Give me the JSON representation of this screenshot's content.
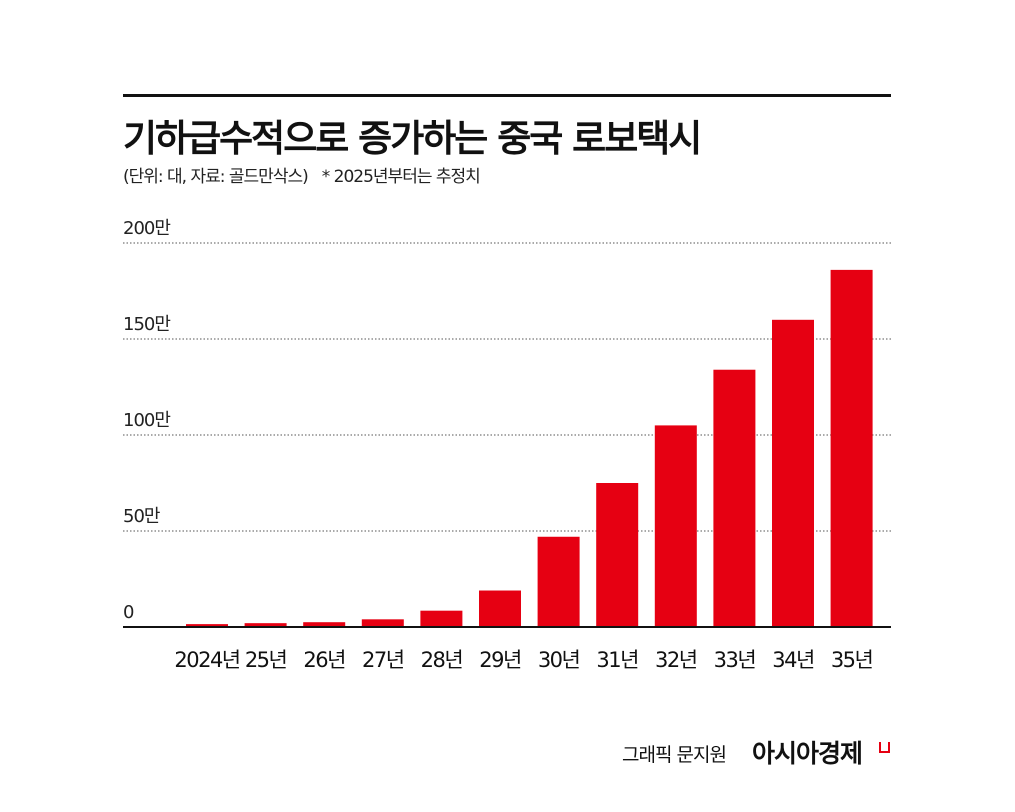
{
  "chart_data": {
    "type": "bar",
    "title": "기하급수적으로 증가하는 중국 로보택시",
    "subtitle": "(단위: 대, 자료: 골드만삭스)",
    "note": "* 2025년부터는 추정치",
    "categories": [
      "2024년",
      "25년",
      "26년",
      "27년",
      "28년",
      "29년",
      "30년",
      "31년",
      "32년",
      "33년",
      "34년",
      "35년"
    ],
    "values": [
      15000,
      20000,
      25000,
      40000,
      85000,
      190000,
      470000,
      750000,
      1050000,
      1340000,
      1600000,
      1860000
    ],
    "yticks": [
      0,
      500000,
      1000000,
      1500000,
      2000000
    ],
    "ytick_labels": [
      "0",
      "50만",
      "100만",
      "150만",
      "200만"
    ],
    "ylim": [
      0,
      2000000
    ],
    "grid": true,
    "bar_color": "#e60012"
  },
  "footer": {
    "credit": "그래픽 문지원",
    "brand": "아시아경제"
  }
}
